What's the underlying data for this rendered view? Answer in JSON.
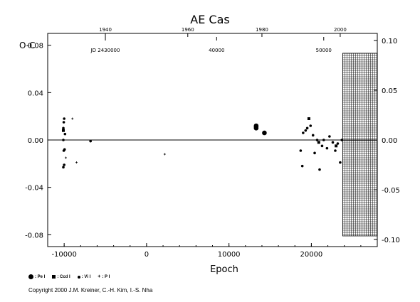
{
  "chart_data": {
    "type": "scatter",
    "title": "AE Cas",
    "ylabel": "O-C",
    "xlabel": "Epoch",
    "xlim": [
      -12000,
      28000
    ],
    "ylim": [
      -0.09,
      0.09
    ],
    "xticks": [
      -10000,
      0,
      10000,
      20000
    ],
    "xtick_labels": [
      "-10000",
      "0",
      "10000",
      "20000"
    ],
    "yticks": [
      -0.08,
      -0.04,
      0.0,
      0.04,
      0.08
    ],
    "ytick_labels": [
      "-0.08",
      "-0.04",
      "0.00",
      "0.04",
      "0.08"
    ],
    "right_yticks": [
      -0.1,
      -0.05,
      0.0,
      0.05,
      0.1
    ],
    "right_ytick_labels": [
      "-0.10",
      "-0.05",
      "0.00",
      "0.05",
      "0.10"
    ],
    "top_year_ticks": [
      {
        "label": "1940",
        "epoch": -5000
      },
      {
        "label": "1960",
        "epoch": 5000
      },
      {
        "label": "1980",
        "epoch": 14000
      },
      {
        "label": "2000",
        "epoch": 23500
      }
    ],
    "jd_ticks": [
      {
        "label": "JD 2430000",
        "epoch": -5000
      },
      {
        "label": "40000",
        "epoch": 8500
      },
      {
        "label": "50000",
        "epoch": 21500
      }
    ],
    "hatched_region": {
      "x_from": 23800,
      "x_to": 28000
    },
    "series": [
      {
        "name": "Pe I",
        "marker": "circle-large",
        "points": [
          [
            13300,
            0.011
          ],
          [
            13300,
            0.01
          ],
          [
            13300,
            0.012
          ],
          [
            14300,
            0.006
          ]
        ]
      },
      {
        "name": "Ccd I",
        "marker": "square",
        "points": [
          [
            -10100,
            0.008
          ],
          [
            19700,
            0.018
          ],
          [
            20900,
            -0.002
          ],
          [
            23000,
            -0.005
          ]
        ]
      },
      {
        "name": "Vi I",
        "marker": "circle-small",
        "points": [
          [
            -10000,
            0.018
          ],
          [
            -10050,
            0.015
          ],
          [
            -10100,
            0.01
          ],
          [
            -9900,
            0.005
          ],
          [
            -10100,
            0.0
          ],
          [
            -9950,
            -0.008
          ],
          [
            -10050,
            -0.009
          ],
          [
            -10000,
            -0.021
          ],
          [
            -10100,
            -0.023
          ],
          [
            -6800,
            -0.001
          ],
          [
            18700,
            -0.009
          ],
          [
            18900,
            -0.022
          ],
          [
            19000,
            0.006
          ],
          [
            19300,
            0.008
          ],
          [
            19500,
            0.01
          ],
          [
            19900,
            0.012
          ],
          [
            20200,
            0.004
          ],
          [
            20400,
            -0.011
          ],
          [
            20700,
            0.0
          ],
          [
            21000,
            -0.025
          ],
          [
            21300,
            -0.005
          ],
          [
            21500,
            0.0
          ],
          [
            21900,
            -0.007
          ],
          [
            22200,
            0.003
          ],
          [
            22600,
            -0.002
          ],
          [
            22900,
            -0.009
          ],
          [
            23200,
            -0.003
          ],
          [
            23500,
            -0.019
          ],
          [
            23700,
            0.0
          ]
        ]
      },
      {
        "name": "P I",
        "marker": "plus",
        "points": [
          [
            -9000,
            0.018
          ],
          [
            -8500,
            -0.019
          ],
          [
            2200,
            -0.012
          ],
          [
            -9800,
            -0.015
          ]
        ]
      }
    ],
    "grid": false,
    "legend_position": "bottom-left"
  },
  "legend": [
    {
      "label": ": Pe I",
      "marker": "circle-large"
    },
    {
      "label": ": Ccd I",
      "marker": "square"
    },
    {
      "label": ": Vi I",
      "marker": "circle-small"
    },
    {
      "label": ": P I",
      "marker": "plus"
    }
  ],
  "copyright": "Copyright 2000 J.M. Kreiner, C.-H. Kim, I.-S. Nha"
}
